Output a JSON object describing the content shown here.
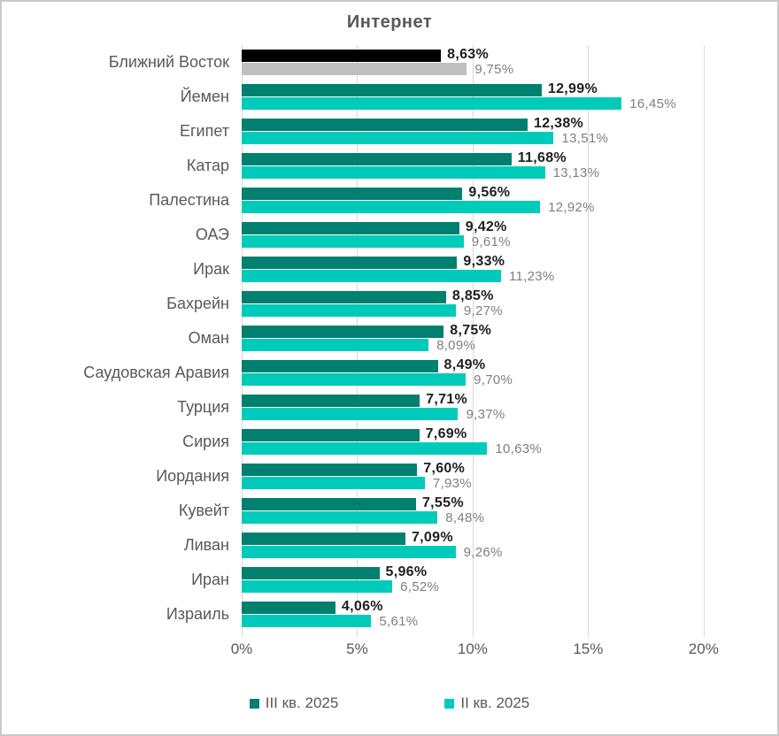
{
  "title": "Интернет",
  "chart_data": {
    "type": "bar",
    "orientation": "horizontal",
    "title": "Интернет",
    "categories": [
      "Ближний Восток",
      "Йемен",
      "Египет",
      "Катар",
      "Палестина",
      "ОАЭ",
      "Ирак",
      "Бахрейн",
      "Оман",
      "Саудовская Аравия",
      "Турция",
      "Сирия",
      "Иордания",
      "Кувейт",
      "Ливан",
      "Иран",
      "Израиль"
    ],
    "series": [
      {
        "name": "III кв. 2025",
        "color": "#00806E",
        "values": [
          8.63,
          12.99,
          12.38,
          11.68,
          9.56,
          9.42,
          9.33,
          8.85,
          8.75,
          8.49,
          7.71,
          7.69,
          7.6,
          7.55,
          7.09,
          5.96,
          4.06
        ],
        "labels": [
          "8,63%",
          "12,99%",
          "12,38%",
          "11,68%",
          "9,56%",
          "9,42%",
          "9,33%",
          "8,85%",
          "8,75%",
          "8,49%",
          "7,71%",
          "7,69%",
          "7,60%",
          "7,55%",
          "7,09%",
          "5,96%",
          "4,06%"
        ]
      },
      {
        "name": "II кв. 2025",
        "color": "#00CBBA",
        "values": [
          9.75,
          16.45,
          13.51,
          13.13,
          12.92,
          9.61,
          11.23,
          9.27,
          8.09,
          9.7,
          9.37,
          10.63,
          7.93,
          8.48,
          9.26,
          6.52,
          5.61
        ],
        "labels": [
          "9,75%",
          "16,45%",
          "13,51%",
          "13,13%",
          "12,92%",
          "9,61%",
          "11,23%",
          "9,27%",
          "8,09%",
          "9,70%",
          "9,37%",
          "10,63%",
          "7,93%",
          "8,48%",
          "9,26%",
          "6,52%",
          "5,61%"
        ]
      }
    ],
    "highlight_index": 0,
    "highlight_colors": [
      "#000000",
      "#BFBFBF"
    ],
    "x_ticks": [
      "0%",
      "5%",
      "10%",
      "15%",
      "20%"
    ],
    "x_tick_values": [
      0,
      5,
      10,
      15,
      20
    ],
    "xlim": [
      0,
      22
    ],
    "grid": true,
    "legend_position": "bottom",
    "value_label_colors": {
      "series1": "#1F1F1F",
      "series2": "#7F7F7F"
    },
    "gridline_color": "#D9D9D9",
    "title_color": "#595959",
    "axis_label_color": "#595959"
  }
}
